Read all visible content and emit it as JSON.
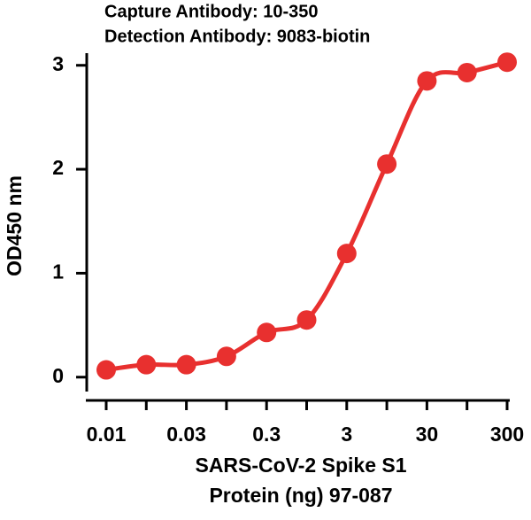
{
  "chart_data": {
    "type": "line",
    "title": [
      "Capture Antibody: 10-350",
      "Detection Antibody: 9083-biotin"
    ],
    "x_label": [
      "SARS-CoV-2 Spike S1",
      "Protein (ng) 97-087"
    ],
    "y_label": "OD450 nm",
    "categories": [
      "0.01",
      null,
      "0.03",
      null,
      "0.3",
      null,
      "3",
      null,
      "30",
      null,
      "300"
    ],
    "values": [
      0.07,
      0.12,
      0.12,
      0.2,
      0.43,
      0.55,
      1.19,
      2.05,
      2.85,
      2.93,
      3.03
    ],
    "color": "#e8302f",
    "ylim": [
      -0.13,
      3.1
    ],
    "yticks": [
      0,
      1,
      2,
      3
    ]
  }
}
